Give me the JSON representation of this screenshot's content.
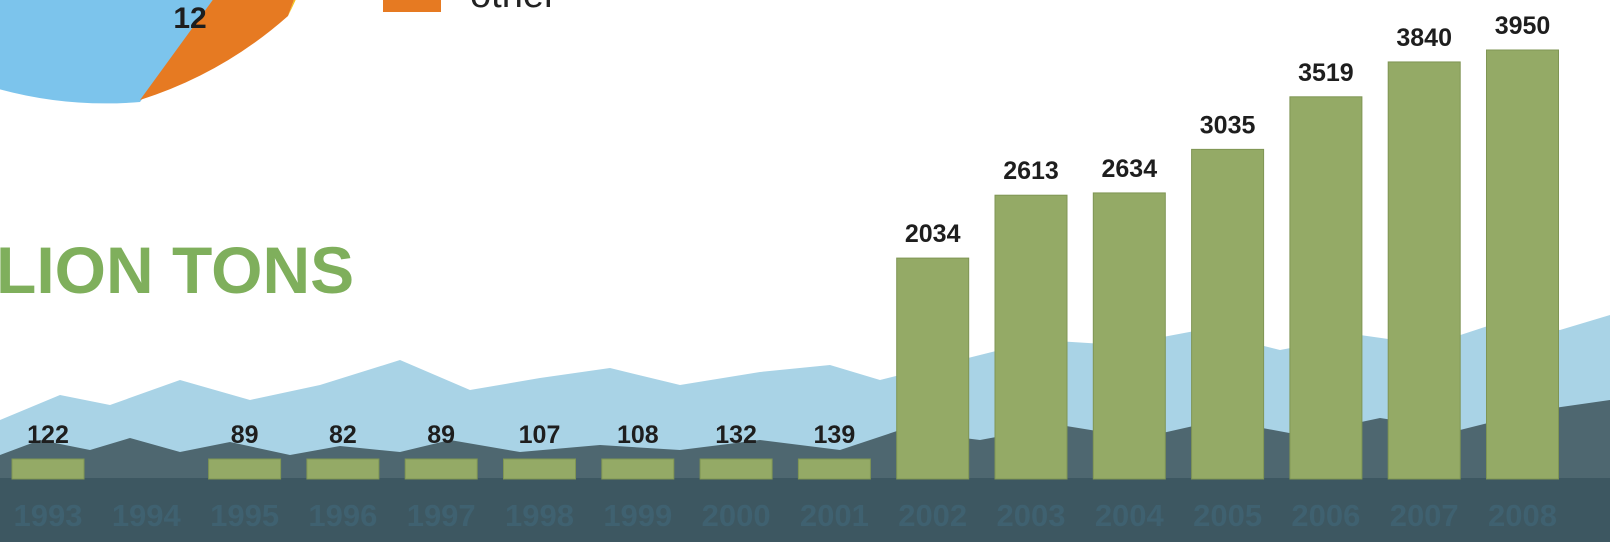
{
  "title_fragment": "LION TONS",
  "pie": {
    "visible_slice_label": "12",
    "colors": {
      "blue": "#7cc4ec",
      "orange": "#e67a22",
      "yellow": "#f3c21a"
    }
  },
  "legend": {
    "label": "other",
    "color": "#e67a22"
  },
  "colors": {
    "bar": "#94aa66",
    "bar_stroke": "#7f9554",
    "year_label": "#3f6170",
    "value_label": "#1e1e1e",
    "mountain_snow": "#a9d3e6",
    "mountain_rock": "#4e6770",
    "ground": "#3d5761"
  },
  "chart_data": {
    "type": "bar",
    "title": "",
    "xlabel": "",
    "ylabel": "",
    "categories": [
      "1993",
      "1994",
      "1995",
      "1996",
      "1997",
      "1998",
      "1999",
      "2000",
      "2001",
      "2002",
      "2003",
      "2004",
      "2005",
      "2006",
      "2007",
      "2008"
    ],
    "values": [
      122,
      null,
      89,
      82,
      89,
      107,
      108,
      132,
      139,
      2034,
      2613,
      2634,
      3035,
      3519,
      3840,
      3950
    ],
    "value_labels": [
      "122",
      "",
      "89",
      "82",
      "89",
      "107",
      "108",
      "132",
      "139",
      "2034",
      "2613",
      "2634",
      "3035",
      "3519",
      "3840",
      "3950"
    ],
    "ylim": [
      0,
      3950
    ],
    "grid": false,
    "legend": "none"
  }
}
